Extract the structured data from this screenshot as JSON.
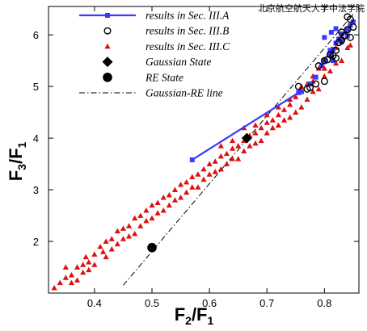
{
  "watermark": "北京航空航天大学中法学院",
  "chart_data": {
    "type": "scatter",
    "xlabel": {
      "main": "F",
      "sub1": "2",
      "sep": "/F",
      "sub2": "1"
    },
    "ylabel": {
      "main": "F",
      "sub1": "3",
      "sep": "/F",
      "sub2": "1"
    },
    "xlim": [
      0.32,
      0.86
    ],
    "ylim": [
      1.0,
      6.55
    ],
    "xticks": [
      0.4,
      0.5,
      0.6,
      0.7,
      0.8
    ],
    "yticks": [
      2,
      3,
      4,
      5,
      6
    ],
    "xtick_labels": [
      "0.4",
      "0.5",
      "0.6",
      "0.7",
      "0.8"
    ],
    "ytick_labels": [
      "2",
      "3",
      "4",
      "5",
      "6"
    ],
    "grid": false,
    "legend_position": "top-left",
    "series": [
      {
        "name": "results in Sec. III.A",
        "kind": "line-square",
        "color": "#3a3aff",
        "points": [
          [
            0.57,
            3.58
          ],
          [
            0.755,
            4.88
          ],
          [
            0.76,
            4.9
          ],
          [
            0.775,
            5.05
          ],
          [
            0.785,
            5.18
          ],
          [
            0.795,
            5.4
          ],
          [
            0.8,
            5.5
          ],
          [
            0.81,
            5.62
          ],
          [
            0.81,
            5.7
          ],
          [
            0.815,
            5.72
          ],
          [
            0.82,
            5.84
          ],
          [
            0.825,
            5.92
          ],
          [
            0.83,
            6.02
          ],
          [
            0.84,
            6.1
          ],
          [
            0.845,
            6.18
          ],
          [
            0.85,
            6.25
          ],
          [
            0.84,
            5.98
          ],
          [
            0.83,
            5.86
          ],
          [
            0.8,
            5.95
          ],
          [
            0.812,
            6.05
          ],
          [
            0.82,
            6.12
          ],
          [
            0.815,
            5.5
          ]
        ]
      },
      {
        "name": "results in Sec. III.B",
        "kind": "open-circle",
        "color": "#000000",
        "points": [
          [
            0.755,
            5.0
          ],
          [
            0.77,
            4.95
          ],
          [
            0.775,
            4.98
          ],
          [
            0.79,
            5.4
          ],
          [
            0.8,
            5.5
          ],
          [
            0.805,
            5.52
          ],
          [
            0.81,
            5.62
          ],
          [
            0.815,
            5.6
          ],
          [
            0.82,
            5.55
          ],
          [
            0.82,
            5.7
          ],
          [
            0.825,
            5.85
          ],
          [
            0.83,
            6.05
          ],
          [
            0.835,
            5.98
          ],
          [
            0.84,
            6.1
          ],
          [
            0.845,
            5.95
          ],
          [
            0.845,
            6.3
          ],
          [
            0.85,
            6.15
          ],
          [
            0.84,
            6.35
          ],
          [
            0.83,
            5.9
          ],
          [
            0.8,
            5.1
          ],
          [
            0.785,
            5.05
          ]
        ]
      },
      {
        "name": "results in Sec. III.C",
        "kind": "triangle",
        "color": "#dd1111",
        "points": [
          [
            0.33,
            1.1
          ],
          [
            0.34,
            1.2
          ],
          [
            0.35,
            1.3
          ],
          [
            0.36,
            1.35
          ],
          [
            0.37,
            1.5
          ],
          [
            0.38,
            1.55
          ],
          [
            0.385,
            1.7
          ],
          [
            0.39,
            1.6
          ],
          [
            0.4,
            1.75
          ],
          [
            0.41,
            1.9
          ],
          [
            0.415,
            1.8
          ],
          [
            0.42,
            2.0
          ],
          [
            0.43,
            2.05
          ],
          [
            0.44,
            2.2
          ],
          [
            0.45,
            2.25
          ],
          [
            0.46,
            2.3
          ],
          [
            0.47,
            2.45
          ],
          [
            0.48,
            2.5
          ],
          [
            0.49,
            2.6
          ],
          [
            0.5,
            2.7
          ],
          [
            0.51,
            2.75
          ],
          [
            0.52,
            2.85
          ],
          [
            0.53,
            2.9
          ],
          [
            0.54,
            3.0
          ],
          [
            0.55,
            3.1
          ],
          [
            0.56,
            3.15
          ],
          [
            0.57,
            3.25
          ],
          [
            0.58,
            3.3
          ],
          [
            0.59,
            3.4
          ],
          [
            0.6,
            3.5
          ],
          [
            0.61,
            3.55
          ],
          [
            0.62,
            3.65
          ],
          [
            0.63,
            3.7
          ],
          [
            0.64,
            3.8
          ],
          [
            0.65,
            3.85
          ],
          [
            0.66,
            3.95
          ],
          [
            0.67,
            4.05
          ],
          [
            0.68,
            4.1
          ],
          [
            0.69,
            4.2
          ],
          [
            0.7,
            4.3
          ],
          [
            0.71,
            4.35
          ],
          [
            0.72,
            4.45
          ],
          [
            0.73,
            4.55
          ],
          [
            0.74,
            4.65
          ],
          [
            0.75,
            4.8
          ],
          [
            0.76,
            4.9
          ],
          [
            0.77,
            5.05
          ],
          [
            0.78,
            5.2
          ],
          [
            0.79,
            5.35
          ],
          [
            0.8,
            5.5
          ],
          [
            0.81,
            5.6
          ],
          [
            0.82,
            5.75
          ],
          [
            0.83,
            5.95
          ],
          [
            0.84,
            6.1
          ],
          [
            0.35,
            1.5
          ],
          [
            0.37,
            1.25
          ],
          [
            0.38,
            1.4
          ],
          [
            0.4,
            1.55
          ],
          [
            0.42,
            1.7
          ],
          [
            0.44,
            1.95
          ],
          [
            0.46,
            2.1
          ],
          [
            0.48,
            2.3
          ],
          [
            0.5,
            2.45
          ],
          [
            0.52,
            2.6
          ],
          [
            0.54,
            2.8
          ],
          [
            0.56,
            2.95
          ],
          [
            0.58,
            3.05
          ],
          [
            0.6,
            3.3
          ],
          [
            0.62,
            3.4
          ],
          [
            0.64,
            3.6
          ],
          [
            0.66,
            3.75
          ],
          [
            0.68,
            3.9
          ],
          [
            0.7,
            4.1
          ],
          [
            0.72,
            4.25
          ],
          [
            0.74,
            4.4
          ],
          [
            0.76,
            4.6
          ],
          [
            0.78,
            4.9
          ],
          [
            0.8,
            5.2
          ],
          [
            0.82,
            5.45
          ],
          [
            0.84,
            5.75
          ],
          [
            0.55,
            2.85
          ],
          [
            0.57,
            3.05
          ],
          [
            0.59,
            3.2
          ],
          [
            0.61,
            3.35
          ],
          [
            0.63,
            3.5
          ],
          [
            0.65,
            3.6
          ],
          [
            0.67,
            3.85
          ],
          [
            0.69,
            3.95
          ],
          [
            0.71,
            4.2
          ],
          [
            0.73,
            4.35
          ],
          [
            0.75,
            4.5
          ],
          [
            0.77,
            4.75
          ],
          [
            0.79,
            4.95
          ],
          [
            0.81,
            5.3
          ],
          [
            0.83,
            5.5
          ],
          [
            0.845,
            5.8
          ],
          [
            0.62,
            3.85
          ],
          [
            0.64,
            3.95
          ],
          [
            0.66,
            4.2
          ],
          [
            0.68,
            4.25
          ],
          [
            0.7,
            4.45
          ],
          [
            0.72,
            4.6
          ],
          [
            0.74,
            4.75
          ],
          [
            0.76,
            5.0
          ],
          [
            0.78,
            5.1
          ],
          [
            0.8,
            5.35
          ],
          [
            0.47,
            2.15
          ],
          [
            0.49,
            2.4
          ],
          [
            0.51,
            2.55
          ],
          [
            0.53,
            2.7
          ],
          [
            0.43,
            1.85
          ],
          [
            0.45,
            2.05
          ],
          [
            0.39,
            1.45
          ],
          [
            0.36,
            1.2
          ]
        ]
      },
      {
        "name": "Gaussian State",
        "kind": "diamond",
        "color": "#000000",
        "points": [
          [
            0.665,
            4.0
          ]
        ]
      },
      {
        "name": "RE State",
        "kind": "filled-circle",
        "color": "#000000",
        "points": [
          [
            0.5,
            1.88
          ]
        ]
      },
      {
        "name": "Gaussian-RE line",
        "kind": "dash-dot",
        "color": "#000000",
        "points": [
          [
            0.45,
            1.15
          ],
          [
            0.85,
            6.4
          ]
        ]
      }
    ]
  }
}
